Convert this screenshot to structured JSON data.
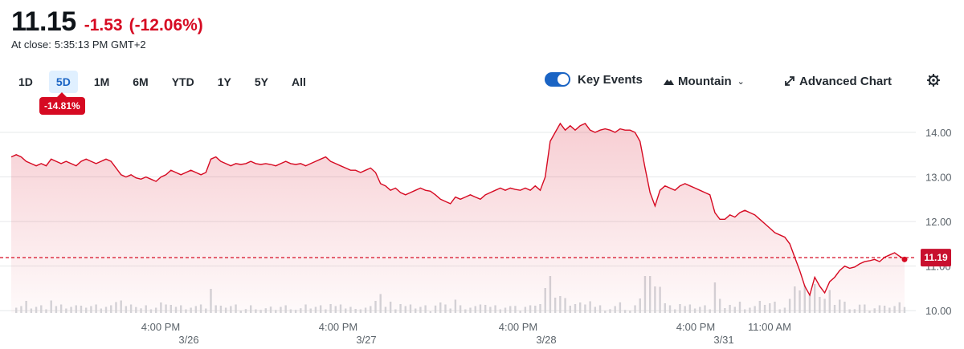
{
  "quote": {
    "price": "11.15",
    "change": "-1.53",
    "change_pct": "(-12.06%)",
    "close_label": "At close:",
    "close_time": "5:35:13 PM GMT+2"
  },
  "ranges": [
    {
      "label": "1D",
      "active": false
    },
    {
      "label": "5D",
      "active": true
    },
    {
      "label": "1M",
      "active": false
    },
    {
      "label": "6M",
      "active": false
    },
    {
      "label": "YTD",
      "active": false
    },
    {
      "label": "1Y",
      "active": false
    },
    {
      "label": "5Y",
      "active": false
    },
    {
      "label": "All",
      "active": false
    }
  ],
  "range_performance": "-14.81%",
  "toolbar": {
    "key_events_label": "Key Events",
    "key_events_on": true,
    "chart_type_label": "Mountain",
    "advanced_label": "Advanced Chart"
  },
  "colors": {
    "down": "#d60a22",
    "accent": "#1a64c4",
    "volume": "#d3d6da"
  },
  "chart_data": {
    "type": "area",
    "ylim": [
      9.95,
      14.45
    ],
    "y_ticks": [
      "14.00",
      "13.00",
      "12.00",
      "11.00",
      "10.00"
    ],
    "x_ticks": [
      {
        "label": "4:00 PM",
        "day": "3/26"
      },
      {
        "label": "4:00 PM",
        "day": "3/27"
      },
      {
        "label": "4:00 PM",
        "day": "3/28"
      },
      {
        "label": "4:00 PM",
        "day": "3/31"
      },
      {
        "label": "11:00 AM",
        "day": ""
      }
    ],
    "previous_close_label": "11.19",
    "previous_close": 11.19,
    "series": [
      {
        "values": [
          13.45,
          13.5,
          13.45,
          13.35,
          13.3,
          13.25,
          13.3,
          13.25,
          13.4,
          13.35,
          13.3,
          13.35,
          13.3,
          13.25,
          13.35,
          13.4,
          13.35,
          13.3,
          13.35,
          13.4,
          13.35,
          13.2,
          13.05,
          13.0,
          13.05,
          12.98,
          12.95,
          13.0,
          12.95,
          12.9,
          13.0,
          13.05,
          13.15,
          13.1,
          13.05,
          13.1,
          13.15,
          13.1,
          13.05,
          13.1,
          13.4,
          13.45,
          13.35,
          13.3,
          13.25,
          13.3,
          13.28,
          13.3,
          13.35,
          13.3,
          13.28,
          13.3,
          13.28,
          13.25,
          13.3,
          13.35,
          13.3,
          13.28,
          13.3,
          13.25,
          13.3,
          13.35,
          13.4,
          13.45,
          13.35,
          13.3,
          13.25,
          13.2,
          13.15,
          13.15,
          13.1,
          13.15,
          13.2,
          13.1,
          12.85,
          12.8,
          12.7,
          12.75,
          12.65,
          12.6,
          12.65,
          12.7,
          12.75,
          12.7,
          12.68,
          12.6,
          12.5,
          12.45,
          12.4,
          12.55,
          12.5,
          12.55,
          12.6,
          12.55,
          12.5,
          12.6,
          12.65,
          12.7,
          12.75,
          12.7,
          12.75,
          12.72,
          12.7,
          12.75,
          12.7,
          12.8,
          12.7,
          13.0,
          13.8,
          14.0,
          14.2,
          14.05,
          14.15,
          14.05,
          14.15,
          14.2,
          14.05,
          14.0,
          14.05,
          14.08,
          14.05,
          14.0,
          14.08,
          14.05,
          14.05,
          14.0,
          13.8,
          13.2,
          12.65,
          12.35,
          12.7,
          12.8,
          12.75,
          12.7,
          12.8,
          12.85,
          12.8,
          12.75,
          12.7,
          12.65,
          12.6,
          12.2,
          12.05,
          12.05,
          12.15,
          12.1,
          12.2,
          12.25,
          12.2,
          12.15,
          12.05,
          11.95,
          11.85,
          11.75,
          11.7,
          11.65,
          11.5,
          11.2,
          10.9,
          10.55,
          10.35,
          10.75,
          10.55,
          10.4,
          10.65,
          10.75,
          10.9,
          11.0,
          10.95,
          10.98,
          11.05,
          11.1,
          11.12,
          11.15,
          11.1,
          11.2,
          11.25,
          11.3,
          11.22,
          11.15
        ]
      }
    ]
  }
}
